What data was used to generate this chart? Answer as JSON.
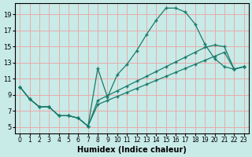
{
  "xlabel": "Humidex (Indice chaleur)",
  "bg_color": "#c8ebe8",
  "grid_color": "#e8aaaa",
  "line_color": "#1a7a6a",
  "xlim": [
    -0.5,
    23.5
  ],
  "ylim": [
    4.2,
    20.4
  ],
  "xticks": [
    0,
    1,
    2,
    3,
    4,
    5,
    6,
    7,
    8,
    9,
    10,
    11,
    12,
    13,
    14,
    15,
    16,
    17,
    18,
    19,
    20,
    21,
    22,
    23
  ],
  "yticks": [
    5,
    7,
    9,
    11,
    13,
    15,
    17,
    19
  ],
  "curve_x": [
    0,
    1,
    2,
    3,
    4,
    5,
    6,
    7,
    8,
    9,
    10,
    11,
    12,
    13,
    14,
    15,
    16,
    17,
    18,
    19,
    20,
    21,
    22,
    23
  ],
  "curve_y": [
    10,
    8.5,
    7.5,
    7.5,
    6.4,
    6.4,
    6.1,
    5.1,
    12.3,
    8.7,
    11.5,
    12.8,
    14.5,
    16.5,
    18.3,
    19.8,
    19.8,
    19.3,
    17.8,
    15.3,
    13.5,
    12.5,
    12.2,
    12.5
  ],
  "line2_x": [
    0,
    1,
    2,
    3,
    4,
    5,
    6,
    7,
    8,
    9,
    10,
    11,
    12,
    13,
    14,
    15,
    16,
    17,
    18,
    19,
    20,
    21,
    22,
    23
  ],
  "line2_y": [
    10,
    8.5,
    7.5,
    7.5,
    6.4,
    6.4,
    6.1,
    5.1,
    7.8,
    8.3,
    8.8,
    9.3,
    9.8,
    10.3,
    10.8,
    11.3,
    11.8,
    12.3,
    12.8,
    13.3,
    13.8,
    14.3,
    12.2,
    12.5
  ],
  "line3_x": [
    0,
    1,
    2,
    3,
    4,
    5,
    6,
    7,
    8,
    9,
    10,
    11,
    12,
    13,
    14,
    15,
    16,
    17,
    18,
    19,
    20,
    21,
    22,
    23
  ],
  "line3_y": [
    10,
    8.5,
    7.5,
    7.5,
    6.4,
    6.4,
    6.1,
    5.1,
    8.3,
    8.9,
    9.5,
    10.1,
    10.7,
    11.3,
    11.9,
    12.5,
    13.1,
    13.7,
    14.3,
    14.9,
    15.2,
    15.0,
    12.2,
    12.5
  ]
}
